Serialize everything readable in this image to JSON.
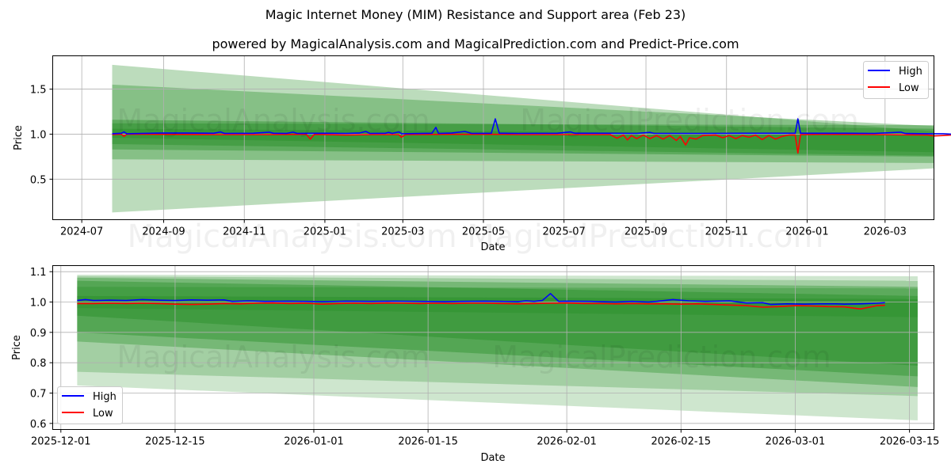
{
  "title": "Magic Internet Money (MIM) Resistance and Support area (Feb 23)",
  "subtitle": "powered by MagicalAnalysis.com and MagicalPrediction.com and Predict-Price.com",
  "watermark": {
    "left": "MagicalAnalysis.com",
    "right": "MagicalPrediction.com",
    "combined": "MagicalAnalysis.com   MagicalPrediction.com"
  },
  "colors": {
    "high": "#0000ff",
    "low": "#ff0000",
    "band": "#228b22",
    "grid": "#b0b0b0"
  },
  "chart_data": [
    {
      "type": "line",
      "xlabel": "Date",
      "ylabel": "Price",
      "x_ticks": [
        "2024-07",
        "2024-09",
        "2024-11",
        "2025-01",
        "2025-03",
        "2025-05",
        "2025-07",
        "2025-09",
        "2025-11",
        "2026-01",
        "2026-03"
      ],
      "y_ticks": [
        "0.5",
        "1.0",
        "1.5"
      ],
      "xlim_days": [
        -22,
        645
      ],
      "ylim": [
        0.05,
        1.87
      ],
      "legend": "top-right",
      "series_names": [
        "High",
        "Low"
      ],
      "x_days_ref": "2024-07-01",
      "high": [
        [
          23,
          1.005
        ],
        [
          30,
          1.01
        ],
        [
          32,
          1.025
        ],
        [
          34,
          1.005
        ],
        [
          45,
          1.008
        ],
        [
          60,
          1.012
        ],
        [
          80,
          1.012
        ],
        [
          100,
          1.01
        ],
        [
          105,
          1.025
        ],
        [
          108,
          1.008
        ],
        [
          130,
          1.01
        ],
        [
          142,
          1.022
        ],
        [
          145,
          1.01
        ],
        [
          155,
          1.008
        ],
        [
          160,
          1.022
        ],
        [
          163,
          1.008
        ],
        [
          185,
          1.01
        ],
        [
          200,
          1.008
        ],
        [
          210,
          1.012
        ],
        [
          215,
          1.03
        ],
        [
          218,
          1.008
        ],
        [
          230,
          1.01
        ],
        [
          232,
          1.02
        ],
        [
          235,
          1.008
        ],
        [
          240,
          1.025
        ],
        [
          242,
          1.005
        ],
        [
          265,
          1.01
        ],
        [
          268,
          1.075
        ],
        [
          270,
          1.008
        ],
        [
          280,
          1.012
        ],
        [
          290,
          1.03
        ],
        [
          295,
          1.008
        ],
        [
          310,
          1.01
        ],
        [
          313,
          1.17
        ],
        [
          316,
          1.01
        ],
        [
          330,
          1.008
        ],
        [
          360,
          1.01
        ],
        [
          370,
          1.025
        ],
        [
          373,
          1.01
        ],
        [
          400,
          1.01
        ],
        [
          420,
          1.008
        ],
        [
          430,
          1.02
        ],
        [
          433,
          1.008
        ],
        [
          470,
          1.008
        ],
        [
          500,
          1.01
        ],
        [
          535,
          1.01
        ],
        [
          540,
          1.01
        ],
        [
          542,
          1.17
        ],
        [
          544,
          1.01
        ],
        [
          580,
          1.01
        ],
        [
          600,
          1.008
        ],
        [
          620,
          1.022
        ],
        [
          623,
          1.008
        ],
        [
          640,
          1.005
        ],
        [
          652,
          1.005
        ],
        [
          658,
          1.0
        ]
      ],
      "low": [
        [
          23,
          0.995
        ],
        [
          30,
          1.0
        ],
        [
          32,
          0.975
        ],
        [
          34,
          1.0
        ],
        [
          60,
          0.998
        ],
        [
          100,
          0.995
        ],
        [
          140,
          0.995
        ],
        [
          170,
          0.998
        ],
        [
          173,
          0.945
        ],
        [
          176,
          0.998
        ],
        [
          200,
          0.99
        ],
        [
          220,
          0.995
        ],
        [
          240,
          0.995
        ],
        [
          242,
          0.965
        ],
        [
          245,
          0.995
        ],
        [
          280,
          0.998
        ],
        [
          320,
          0.998
        ],
        [
          330,
          0.995
        ],
        [
          370,
          0.995
        ],
        [
          400,
          0.995
        ],
        [
          405,
          0.955
        ],
        [
          410,
          0.99
        ],
        [
          413,
          0.935
        ],
        [
          416,
          0.985
        ],
        [
          420,
          0.95
        ],
        [
          425,
          0.99
        ],
        [
          430,
          0.95
        ],
        [
          435,
          0.985
        ],
        [
          440,
          0.945
        ],
        [
          445,
          0.985
        ],
        [
          450,
          0.93
        ],
        [
          453,
          0.975
        ],
        [
          457,
          0.88
        ],
        [
          460,
          0.96
        ],
        [
          465,
          0.945
        ],
        [
          470,
          0.985
        ],
        [
          480,
          0.99
        ],
        [
          485,
          0.96
        ],
        [
          490,
          0.985
        ],
        [
          495,
          0.95
        ],
        [
          500,
          0.985
        ],
        [
          505,
          0.965
        ],
        [
          510,
          0.99
        ],
        [
          515,
          0.94
        ],
        [
          520,
          0.985
        ],
        [
          525,
          0.945
        ],
        [
          530,
          0.975
        ],
        [
          535,
          0.99
        ],
        [
          540,
          0.99
        ],
        [
          542,
          0.79
        ],
        [
          544,
          0.995
        ],
        [
          560,
          0.998
        ],
        [
          600,
          0.995
        ],
        [
          640,
          0.99
        ],
        [
          645,
          0.98
        ],
        [
          652,
          0.985
        ],
        [
          658,
          0.99
        ]
      ]
    },
    {
      "type": "line",
      "xlabel": "Date",
      "ylabel": "Price",
      "x_ticks": [
        "2025-12-01",
        "2025-12-15",
        "2026-01-01",
        "2026-01-15",
        "2026-02-01",
        "2026-02-15",
        "2026-03-01",
        "2026-03-15"
      ],
      "y_ticks": [
        "0.6",
        "0.7",
        "0.8",
        "0.9",
        "1.0",
        "1.1"
      ],
      "xlim_days": [
        -1,
        107
      ],
      "ylim": [
        0.58,
        1.12
      ],
      "legend": "bottom-left",
      "series_names": [
        "High",
        "Low"
      ],
      "x_days_ref": "2025-12-01",
      "high": [
        [
          2,
          1.005
        ],
        [
          3,
          1.008
        ],
        [
          4,
          1.005
        ],
        [
          6,
          1.006
        ],
        [
          8,
          1.005
        ],
        [
          10,
          1.008
        ],
        [
          12,
          1.006
        ],
        [
          14,
          1.005
        ],
        [
          16,
          1.007
        ],
        [
          18,
          1.006
        ],
        [
          20,
          1.007
        ],
        [
          21,
          1.002
        ],
        [
          23,
          1.004
        ],
        [
          25,
          1.002
        ],
        [
          28,
          1.003
        ],
        [
          30,
          1.002
        ],
        [
          32,
          1.001
        ],
        [
          35,
          1.003
        ],
        [
          38,
          1.002
        ],
        [
          41,
          1.003
        ],
        [
          44,
          1.002
        ],
        [
          47,
          1.001
        ],
        [
          49,
          1.002
        ],
        [
          52,
          1.003
        ],
        [
          54,
          1.002
        ],
        [
          56,
          1.001
        ],
        [
          57,
          1.004
        ],
        [
          58,
          1.002
        ],
        [
          59,
          1.005
        ],
        [
          60,
          1.028
        ],
        [
          61,
          1.002
        ],
        [
          62,
          1.003
        ],
        [
          65,
          1.002
        ],
        [
          66,
          1.001
        ],
        [
          68,
          1.0
        ],
        [
          70,
          1.002
        ],
        [
          72,
          1.0
        ],
        [
          73,
          1.002
        ],
        [
          75,
          1.008
        ],
        [
          77,
          1.004
        ],
        [
          79,
          1.002
        ],
        [
          82,
          1.004
        ],
        [
          84,
          0.997
        ],
        [
          86,
          0.998
        ],
        [
          87,
          0.992
        ],
        [
          89,
          0.994
        ],
        [
          91,
          0.993
        ],
        [
          93,
          0.994
        ],
        [
          95,
          0.994
        ],
        [
          96,
          0.993
        ],
        [
          98,
          0.994
        ],
        [
          100,
          0.996
        ],
        [
          101,
          0.998
        ]
      ],
      "low": [
        [
          2,
          0.995
        ],
        [
          4,
          0.995
        ],
        [
          6,
          0.996
        ],
        [
          8,
          0.995
        ],
        [
          10,
          0.996
        ],
        [
          12,
          0.995
        ],
        [
          14,
          0.993
        ],
        [
          16,
          0.992
        ],
        [
          18,
          0.993
        ],
        [
          20,
          0.995
        ],
        [
          22,
          0.994
        ],
        [
          24,
          0.996
        ],
        [
          26,
          0.997
        ],
        [
          28,
          0.995
        ],
        [
          30,
          0.996
        ],
        [
          32,
          0.993
        ],
        [
          34,
          0.995
        ],
        [
          36,
          0.996
        ],
        [
          38,
          0.995
        ],
        [
          40,
          0.997
        ],
        [
          42,
          0.996
        ],
        [
          44,
          0.995
        ],
        [
          46,
          0.996
        ],
        [
          48,
          0.995
        ],
        [
          50,
          0.996
        ],
        [
          52,
          0.996
        ],
        [
          54,
          0.995
        ],
        [
          56,
          0.994
        ],
        [
          58,
          0.995
        ],
        [
          60,
          0.996
        ],
        [
          62,
          0.997
        ],
        [
          64,
          0.995
        ],
        [
          66,
          0.995
        ],
        [
          68,
          0.994
        ],
        [
          70,
          0.995
        ],
        [
          72,
          0.994
        ],
        [
          74,
          0.994
        ],
        [
          76,
          0.993
        ],
        [
          78,
          0.994
        ],
        [
          80,
          0.992
        ],
        [
          82,
          0.99
        ],
        [
          84,
          0.988
        ],
        [
          86,
          0.983
        ],
        [
          88,
          0.985
        ],
        [
          90,
          0.988
        ],
        [
          92,
          0.987
        ],
        [
          94,
          0.985
        ],
        [
          96,
          0.984
        ],
        [
          98,
          0.977
        ],
        [
          100,
          0.988
        ],
        [
          101,
          0.989
        ]
      ]
    }
  ]
}
